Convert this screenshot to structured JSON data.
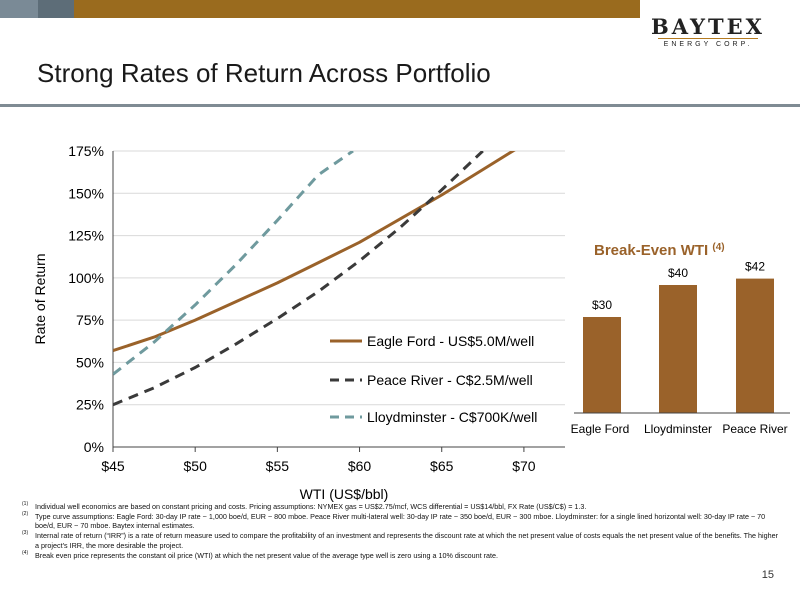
{
  "header": {
    "title": "Strong Rates of Return Across Portfolio",
    "logo_main": "BAYTEX",
    "logo_sub": "ENERGY CORP."
  },
  "colors": {
    "eagle_ford": "#9a622a",
    "peace_river": "#3a3a3a",
    "lloydminster": "#6f9a9e",
    "bar": "#9a622a",
    "break_even_title": "#9a622a",
    "top_bar": "#9a6b1e"
  },
  "chart_data": [
    {
      "type": "line",
      "title": "",
      "xlabel": "WTI (US$/bbl)",
      "ylabel": "Rate of Return",
      "xlim": [
        45,
        72.5
      ],
      "ylim": [
        0,
        175
      ],
      "x_ticks": [
        45,
        50,
        55,
        60,
        65,
        70
      ],
      "x_tick_labels": [
        "$45",
        "$50",
        "$55",
        "$60",
        "$65",
        "$70"
      ],
      "y_ticks": [
        0,
        25,
        50,
        75,
        100,
        125,
        150,
        175
      ],
      "y_tick_labels": [
        "0%",
        "25%",
        "50%",
        "75%",
        "100%",
        "125%",
        "150%",
        "175%"
      ],
      "grid": "horizontal",
      "legend": "bottom-right",
      "series": [
        {
          "name": "Eagle Ford - US$5.0M/well",
          "style": "solid",
          "color": "#9a622a",
          "x": [
            45,
            47.5,
            50,
            52.5,
            55,
            57.5,
            60,
            62.5,
            65,
            67.5,
            70,
            71.7
          ],
          "y": [
            57,
            65,
            75,
            86,
            97,
            109,
            121,
            135,
            149,
            164,
            179,
            188
          ]
        },
        {
          "name": "Peace River - C$2.5M/well",
          "style": "dashed",
          "color": "#3a3a3a",
          "x": [
            45,
            47.5,
            50,
            52.5,
            55,
            57.5,
            60,
            62.5,
            65,
            67.5
          ],
          "y": [
            25,
            35,
            47,
            61,
            76,
            92,
            110,
            130,
            152,
            175
          ]
        },
        {
          "name": "Lloydminster - C$700K/well",
          "style": "dashed",
          "color": "#6f9a9e",
          "x": [
            45,
            47.5,
            50,
            52.5,
            55,
            57.5,
            59.6
          ],
          "y": [
            43,
            62,
            84,
            108,
            134,
            161,
            175
          ]
        }
      ]
    },
    {
      "type": "bar",
      "title": "Break-Even WTI",
      "title_footnote": "(4)",
      "categories": [
        "Eagle Ford",
        "Lloydminster",
        "Peace River"
      ],
      "values": [
        30,
        40,
        42
      ],
      "data_labels": [
        "$30",
        "$40",
        "$42"
      ],
      "ylim": [
        0,
        50
      ]
    }
  ],
  "footnotes": [
    {
      "mark": "(1)",
      "text": "Individual well economics are based on constant pricing and costs. Pricing assumptions: NYMEX gas = US$2.75/mcf, WCS differential = US$14/bbl, FX Rate (US$/C$) = 1.3."
    },
    {
      "mark": "(2)",
      "text": "Type curve assumptions: Eagle Ford: 30-day IP rate ~ 1,000 boe/d, EUR ~ 800 mboe. Peace River multi-lateral well: 30-day IP rate ~ 350 boe/d, EUR ~ 300 mboe. Lloydminster: for a single lined horizontal well: 30-day IP rate ~ 70 boe/d, EUR ~ 70 mboe. Baytex internal estimates."
    },
    {
      "mark": "(3)",
      "text": "Internal rate of return (“IRR”) is a rate of return measure used to compare the profitability of an investment and represents the discount rate at which the net present value of costs equals the net present value of the benefits. The higher a project’s IRR, the more desirable the project."
    },
    {
      "mark": "(4)",
      "text": "Break even price represents the constant oil price (WTI) at which the net present value of the average type well is zero using a 10% discount rate."
    }
  ],
  "page_number": "15"
}
